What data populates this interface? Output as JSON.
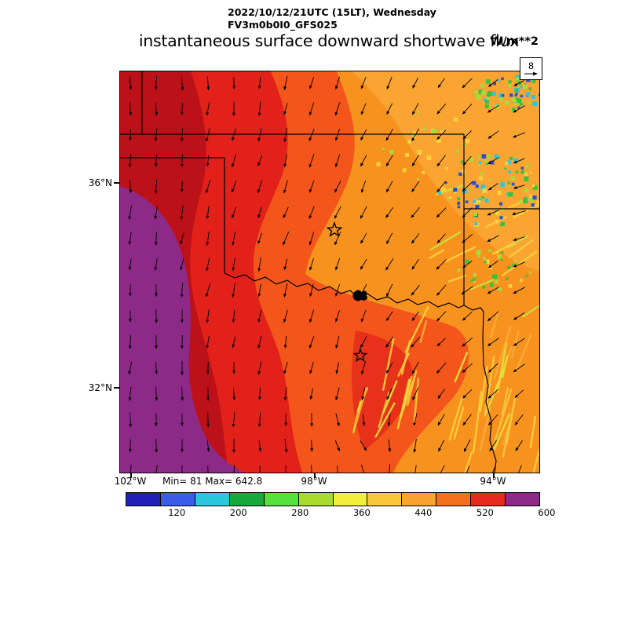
{
  "header": {
    "datetime_line": "2022/10/12/21UTC (15LT), Wednesday",
    "model_line": "FV3m0b0I0_GFS025",
    "title": "instantaneous surface downward shortwave flux",
    "units": "W/m**2"
  },
  "axes": {
    "lat_ticks": [
      {
        "label": "36°N"
      },
      {
        "label": "32°N"
      }
    ],
    "lon_ticks": [
      {
        "label": "102°W"
      },
      {
        "label": "98°W"
      },
      {
        "label": "94°W"
      }
    ]
  },
  "stats": {
    "text": "Min= 81 Max= 642.8"
  },
  "reference": {
    "value": "8"
  },
  "colorbar": {
    "tick_labels": [
      "120",
      "200",
      "280",
      "360",
      "440",
      "520",
      "600"
    ],
    "colors": [
      "#2020B8",
      "#3A5CE8",
      "#2BC8DC",
      "#18A83C",
      "#55E03C",
      "#A8DC2C",
      "#F2EE3C",
      "#F7C83C",
      "#F9A430",
      "#F4701E",
      "#E62A1E",
      "#8D2A88"
    ]
  },
  "chart_data": {
    "type": "heatmap",
    "title": "instantaneous surface downward shortwave flux",
    "units": "W/m**2",
    "valid_time": "2022/10/12/21UTC (15LT), Wednesday",
    "model_run": "FV3m0b0I0_GFS025",
    "stat_min": 81,
    "stat_max": 642.8,
    "colorbar_ticks": [
      120,
      200,
      280,
      360,
      440,
      520,
      600
    ],
    "colorbar_colors": [
      "#2020B8",
      "#3A5CE8",
      "#2BC8DC",
      "#18A83C",
      "#55E03C",
      "#A8DC2C",
      "#F2EE3C",
      "#F7C83C",
      "#F9A430",
      "#F4701E",
      "#E62A1E",
      "#8D2A88"
    ],
    "lat_tick_values": [
      "36°N",
      "32°N"
    ],
    "lon_tick_values": [
      "102°W",
      "98°W",
      "94°W"
    ],
    "wind_reference_value": 8,
    "field_summary": [
      {
        "region": "far west (west Texas)",
        "flux_wm2": "600-643, purple shading"
      },
      {
        "region": "west-central band",
        "flux_wm2": "520-600, dark red to red"
      },
      {
        "region": "central (western Oklahoma / north-central Texas)",
        "flux_wm2": "460-540, red-orange"
      },
      {
        "region": "east (central OK / east Texas)",
        "flux_wm2": "400-500, orange with yellow 360-440 cloud streaks"
      },
      {
        "region": "northeast (NE Oklahoma / Ozarks)",
        "flux_wm2": "120-320, green-cyan-blue cloudy patches"
      }
    ],
    "overlays": [
      "wind vector field, northerly flow backing to northeasterly toward the east",
      "state boundaries (TX, OK, KS, MO, AR) and the Red River",
      "Lake Texoma shown as filled black water body",
      "two star location markers",
      "reference wind arrow box labeled 8"
    ]
  }
}
